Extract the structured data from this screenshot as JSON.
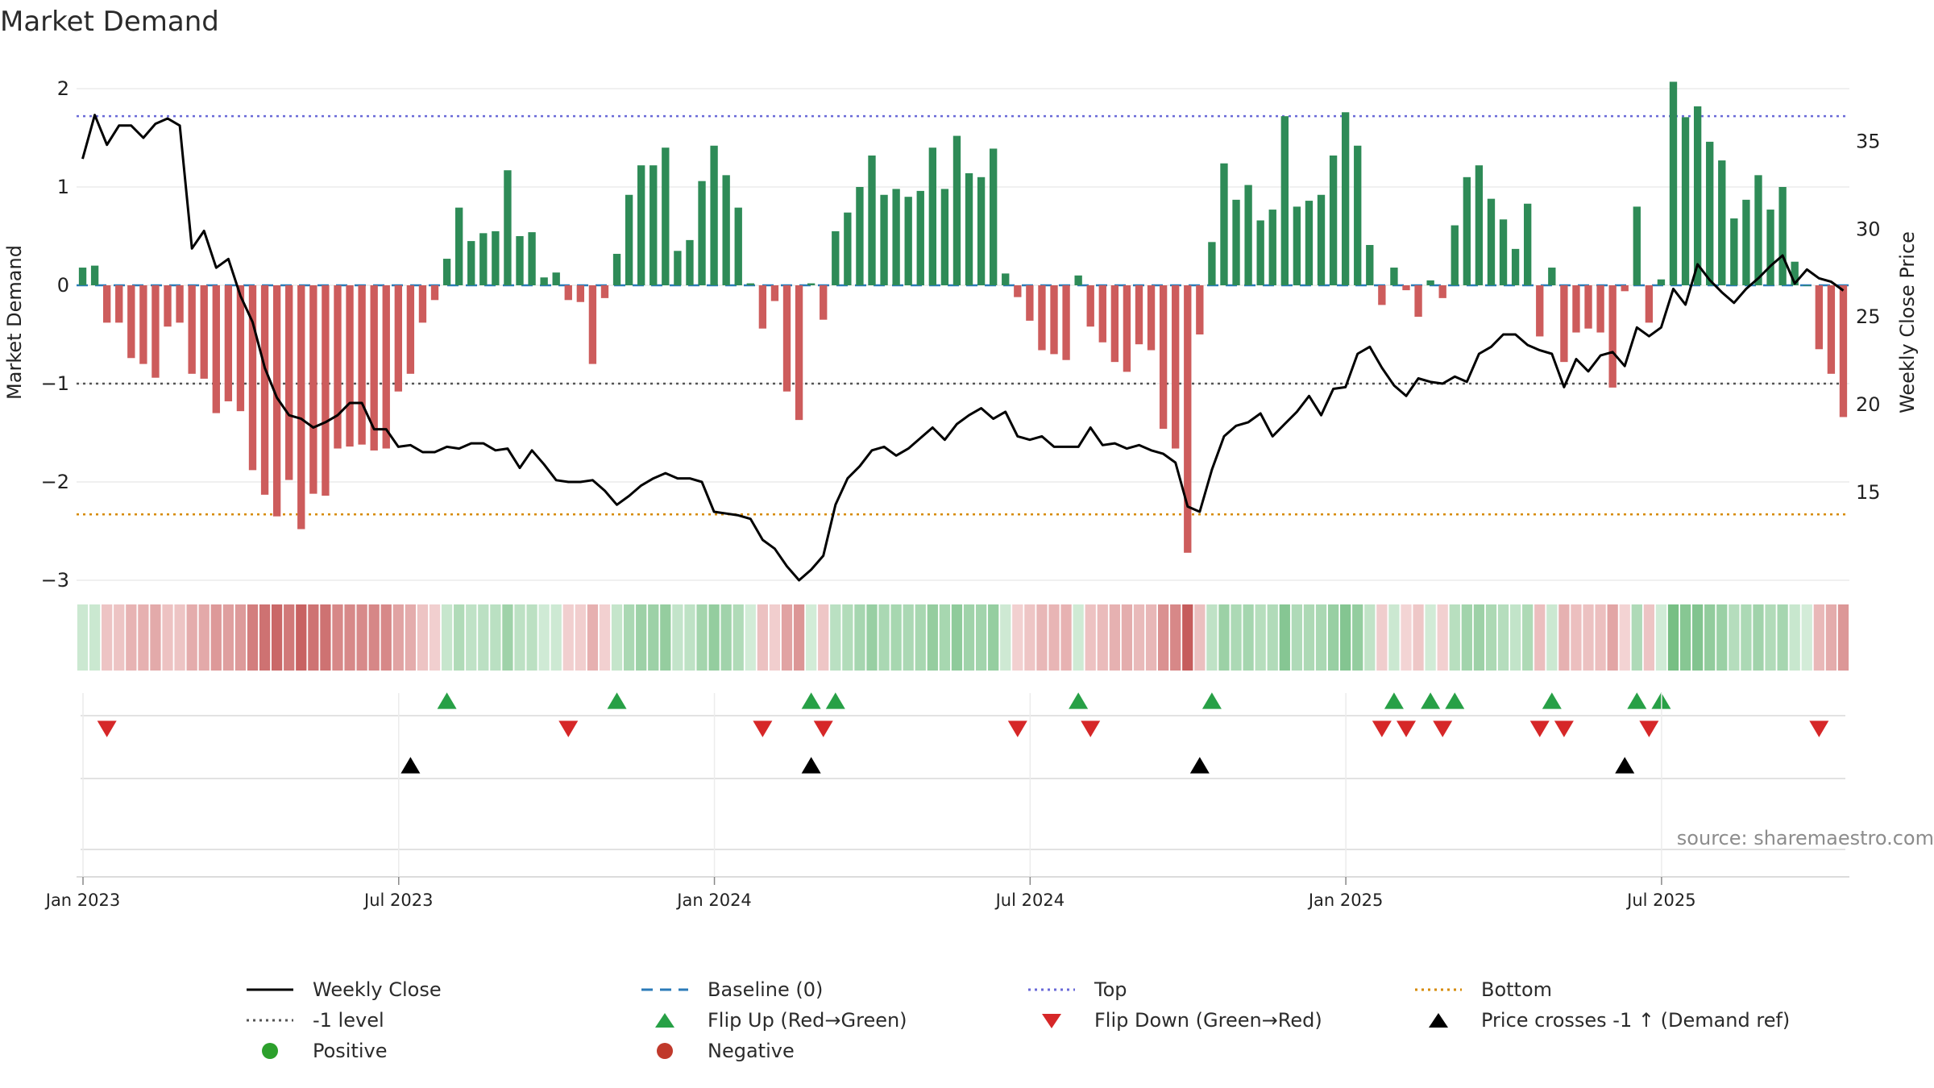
{
  "chart_data": {
    "type": "bar",
    "title": "Market Demand",
    "ylabel_left": "Market Demand",
    "ylabel_right": "Weekly Close Price",
    "ylim_left": [
      -3,
      2
    ],
    "ylim_right": [
      10,
      38
    ],
    "yticks_left": [
      "2",
      "1",
      "0",
      "−1",
      "−2",
      "−3"
    ],
    "yticks_left_values": [
      2,
      1,
      0,
      -1,
      -2,
      -3
    ],
    "yticks_right": [
      "35",
      "30",
      "25",
      "20",
      "15"
    ],
    "yticks_right_values": [
      35,
      30,
      25,
      20,
      15
    ],
    "x_ticks": [
      "Jan 2023",
      "Jul 2023",
      "Jan 2024",
      "Jul 2024",
      "Jan 2025",
      "Jul 2025"
    ],
    "reference_lines": {
      "baseline": 0,
      "top": 1.72,
      "level": -1,
      "bottom": -2.33
    },
    "demand": [
      0.18,
      0.2,
      -0.38,
      -0.38,
      -0.74,
      -0.8,
      -0.94,
      -0.42,
      -0.38,
      -0.9,
      -0.95,
      -1.3,
      -1.18,
      -1.28,
      -1.88,
      -2.13,
      -2.35,
      -1.98,
      -2.48,
      -2.12,
      -2.14,
      -1.66,
      -1.64,
      -1.62,
      -1.68,
      -1.66,
      -1.08,
      -0.9,
      -0.38,
      -0.15,
      0.27,
      0.79,
      0.45,
      0.53,
      0.55,
      1.17,
      0.5,
      0.54,
      0.08,
      0.13,
      -0.15,
      -0.17,
      -0.8,
      -0.13,
      0.32,
      0.92,
      1.22,
      1.22,
      1.4,
      0.35,
      0.46,
      1.06,
      1.42,
      1.12,
      0.79,
      0.02,
      -0.44,
      -0.16,
      -1.08,
      -1.37,
      0.02,
      -0.35,
      0.55,
      0.74,
      1.0,
      1.32,
      0.92,
      0.98,
      0.9,
      0.96,
      1.4,
      0.98,
      1.52,
      1.14,
      1.1,
      1.39,
      0.12,
      -0.12,
      -0.36,
      -0.66,
      -0.7,
      -0.76,
      0.1,
      -0.42,
      -0.58,
      -0.78,
      -0.88,
      -0.6,
      -0.66,
      -1.46,
      -1.66,
      -2.72,
      -0.5,
      0.44,
      1.24,
      0.87,
      1.02,
      0.66,
      0.77,
      1.72,
      0.8,
      0.86,
      0.92,
      1.32,
      1.76,
      1.42,
      0.41,
      -0.2,
      0.18,
      -0.05,
      -0.32,
      0.05,
      -0.13,
      0.61,
      1.1,
      1.22,
      0.88,
      0.67,
      0.37,
      0.83,
      -0.52,
      0.18,
      -0.78,
      -0.48,
      -0.44,
      -0.48,
      -1.04,
      -0.06,
      0.8,
      -0.38,
      0.06,
      2.07,
      1.71,
      1.82,
      1.46,
      1.27,
      0.68,
      0.87,
      1.12,
      0.77,
      1.0,
      0.24,
      0.0,
      -0.65,
      -0.9,
      -1.34
    ],
    "weekly_close": [
      34.0,
      36.5,
      34.8,
      35.9,
      35.9,
      35.2,
      36.0,
      36.3,
      35.9,
      28.9,
      29.9,
      27.8,
      28.3,
      26.2,
      24.7,
      22.1,
      20.4,
      19.4,
      19.2,
      18.7,
      19.0,
      19.4,
      20.1,
      20.1,
      18.6,
      18.6,
      17.6,
      17.7,
      17.3,
      17.3,
      17.6,
      17.5,
      17.8,
      17.8,
      17.4,
      17.5,
      16.4,
      17.4,
      16.6,
      15.7,
      15.6,
      15.6,
      15.7,
      15.1,
      14.3,
      14.8,
      15.4,
      15.8,
      16.1,
      15.8,
      15.8,
      15.6,
      13.9,
      13.8,
      13.7,
      13.5,
      12.3,
      11.8,
      10.8,
      10.0,
      10.6,
      11.4,
      14.3,
      15.8,
      16.5,
      17.4,
      17.6,
      17.1,
      17.5,
      18.1,
      18.7,
      18.0,
      18.9,
      19.4,
      19.8,
      19.2,
      19.6,
      18.2,
      18.0,
      18.2,
      17.6,
      17.6,
      17.6,
      18.7,
      17.7,
      17.8,
      17.5,
      17.7,
      17.4,
      17.2,
      16.7,
      14.2,
      13.9,
      16.3,
      18.2,
      18.8,
      19.0,
      19.5,
      18.2,
      18.9,
      19.6,
      20.5,
      19.4,
      20.9,
      21.0,
      22.9,
      23.3,
      22.1,
      21.1,
      20.5,
      21.5,
      21.3,
      21.2,
      21.6,
      21.3,
      22.9,
      23.3,
      24.0,
      24.0,
      23.4,
      23.1,
      22.9,
      21.0,
      22.6,
      21.9,
      22.8,
      23.0,
      22.2,
      24.4,
      23.9,
      24.4,
      26.6,
      25.7,
      28.0,
      27.1,
      26.4,
      25.8,
      26.6,
      27.2,
      27.9,
      28.5,
      26.9,
      27.7,
      27.2,
      27.0,
      26.5
    ]
  },
  "annotations": {
    "source": "source: sharemaestro.com"
  },
  "legend": [
    {
      "id": "weekly-close",
      "label": "Weekly Close",
      "kind": "line",
      "color": "#000000"
    },
    {
      "id": "baseline",
      "label": "Baseline (0)",
      "kind": "dash",
      "color": "#2b7bb9"
    },
    {
      "id": "top",
      "label": "Top",
      "kind": "dot",
      "color": "#6a6ad8"
    },
    {
      "id": "bottom",
      "label": "Bottom",
      "kind": "dot",
      "color": "#d68a00"
    },
    {
      "id": "level",
      "label": "-1 level",
      "kind": "dot",
      "color": "#555555"
    },
    {
      "id": "flip-up",
      "label": "Flip Up (Red→Green)",
      "kind": "tri-up",
      "color": "#27a046"
    },
    {
      "id": "flip-down",
      "label": "Flip Down (Green→Red)",
      "kind": "tri-down",
      "color": "#d62728"
    },
    {
      "id": "price-cross",
      "label": "Price crosses -1 ↑ (Demand ref)",
      "kind": "tri-up",
      "color": "#000000"
    },
    {
      "id": "positive",
      "label": "Positive",
      "kind": "circle",
      "color": "#2ca02c"
    },
    {
      "id": "negative",
      "label": "Negative",
      "kind": "circle",
      "color": "#c0392b"
    }
  ],
  "colors": {
    "positive_bar": "#2e8b57",
    "negative_bar": "#cd5c5c",
    "flip_up": "#27a046",
    "flip_down": "#d62728",
    "price_cross": "#000000"
  }
}
